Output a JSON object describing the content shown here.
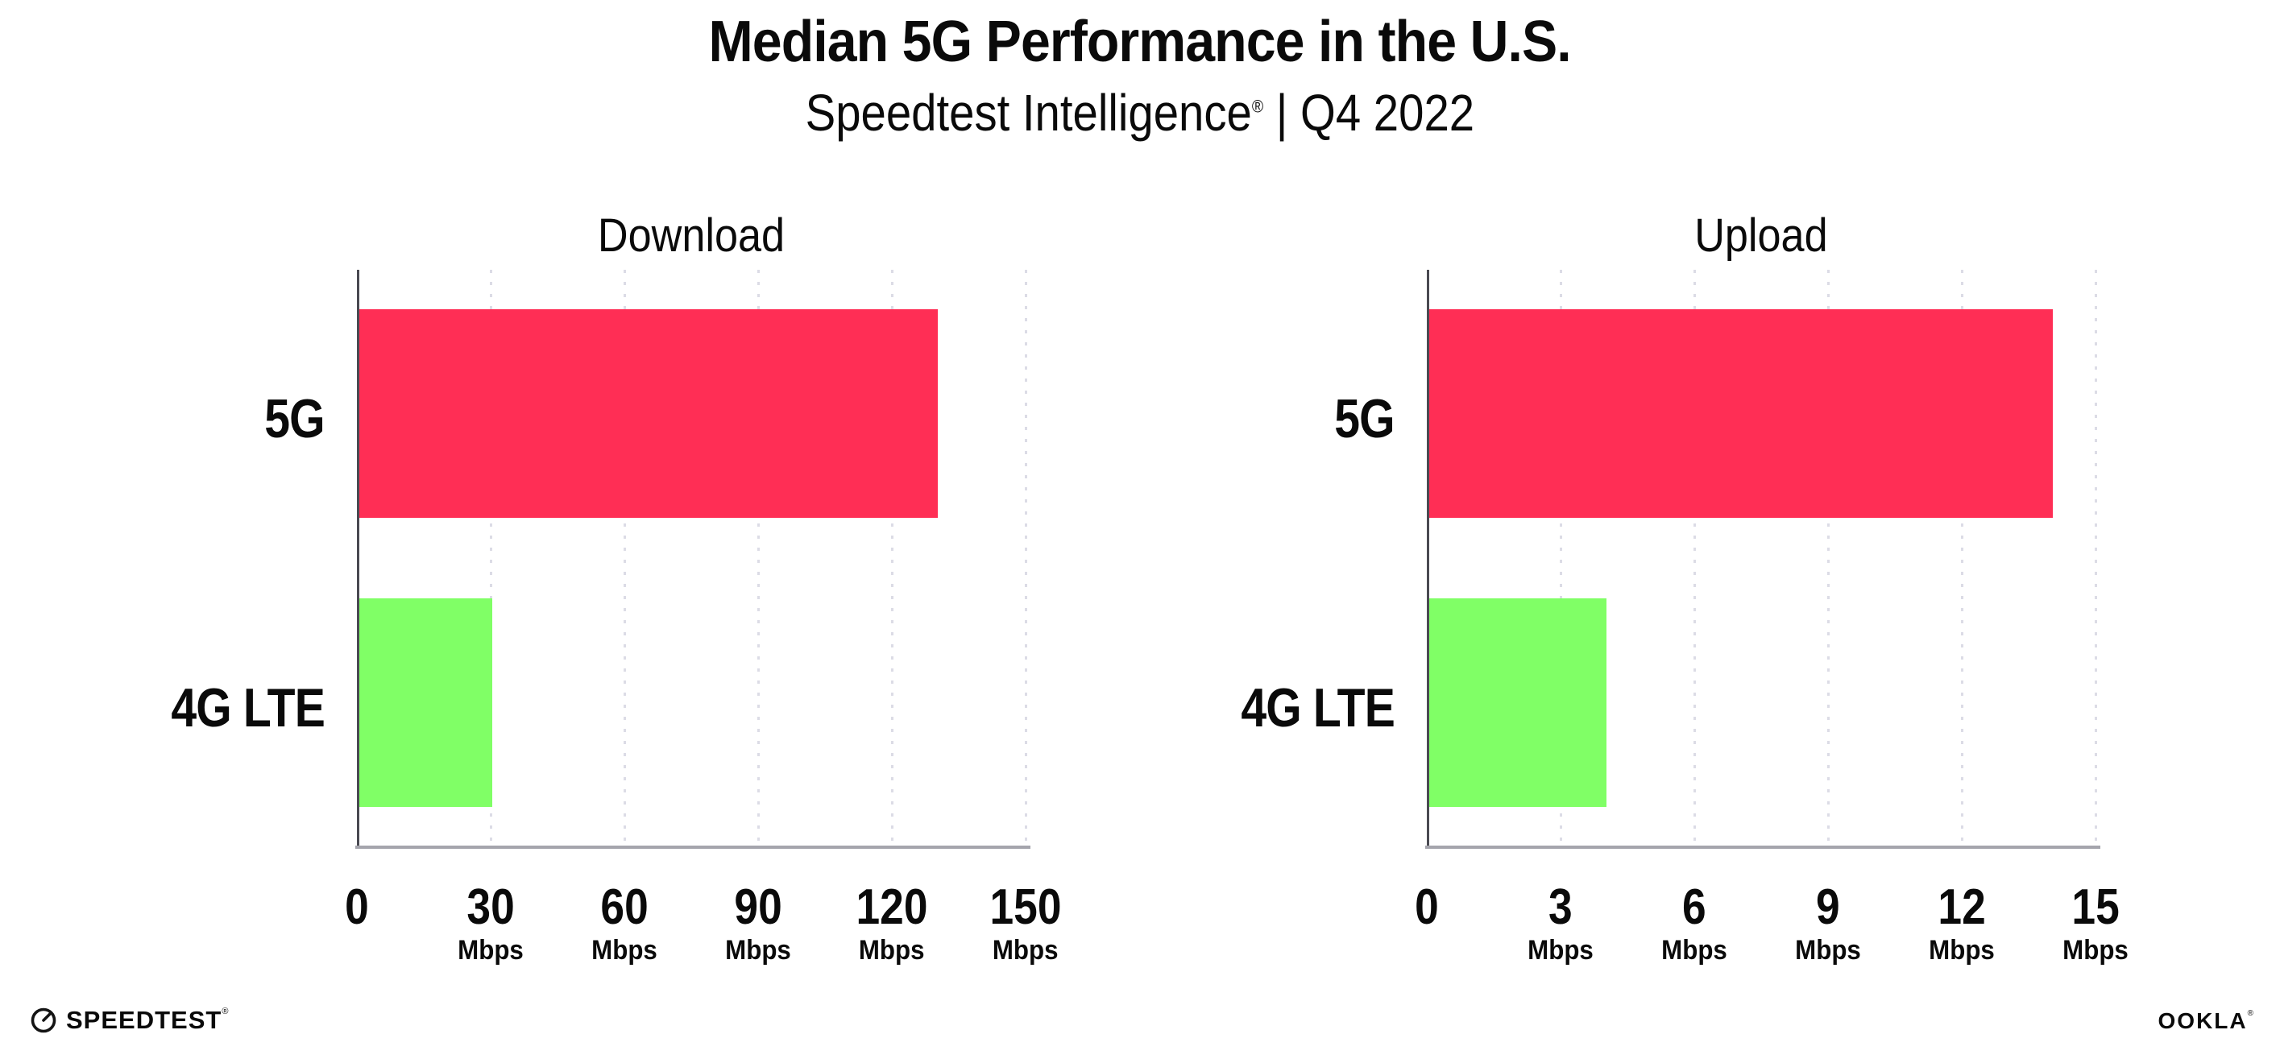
{
  "header": {
    "title": "Median 5G Performance in the U.S.",
    "subtitle": {
      "brand": "Speedtest Intelligence",
      "registered_mark": "®",
      "rest": " | Q4 2022"
    }
  },
  "chart_data": [
    {
      "type": "bar",
      "orientation": "horizontal",
      "title": "Download",
      "categories": [
        "5G",
        "4G LTE"
      ],
      "values": [
        130,
        30
      ],
      "values_unit": "Mbps",
      "xlabel": "",
      "ylabel": "",
      "xlim": [
        0,
        150
      ],
      "xticks": [
        0,
        30,
        60,
        90,
        120,
        150
      ],
      "xtick_unit": "Mbps",
      "bar_colors": [
        "#FF2E55",
        "#80FF66"
      ],
      "grid": true,
      "gridline_style": "dotted",
      "legend": "none"
    },
    {
      "type": "bar",
      "orientation": "horizontal",
      "title": "Upload",
      "categories": [
        "5G",
        "4G LTE"
      ],
      "values": [
        14,
        4
      ],
      "values_unit": "Mbps",
      "xlabel": "",
      "ylabel": "",
      "xlim": [
        0,
        15
      ],
      "xticks": [
        0,
        3,
        6,
        9,
        12,
        15
      ],
      "xtick_unit": "Mbps",
      "bar_colors": [
        "#FF2E55",
        "#80FF66"
      ],
      "grid": true,
      "gridline_style": "dotted",
      "legend": "none"
    }
  ],
  "footer": {
    "speedtest_logo_text": "SPEEDTEST",
    "speedtest_registered_mark": "®",
    "speedtest_icon": "gauge-icon",
    "ookla_logo_text": "OOKLA",
    "ookla_registered_mark": "®"
  },
  "colors": {
    "bar_5g": "#FF2E55",
    "bar_4g_lte": "#80FF66",
    "y_axis_line": "#4A4A52",
    "x_axis_line": "#A5A5AD",
    "gridline": "#DCDCE6",
    "text": "#0A0A0A",
    "background": "#FFFFFF"
  }
}
